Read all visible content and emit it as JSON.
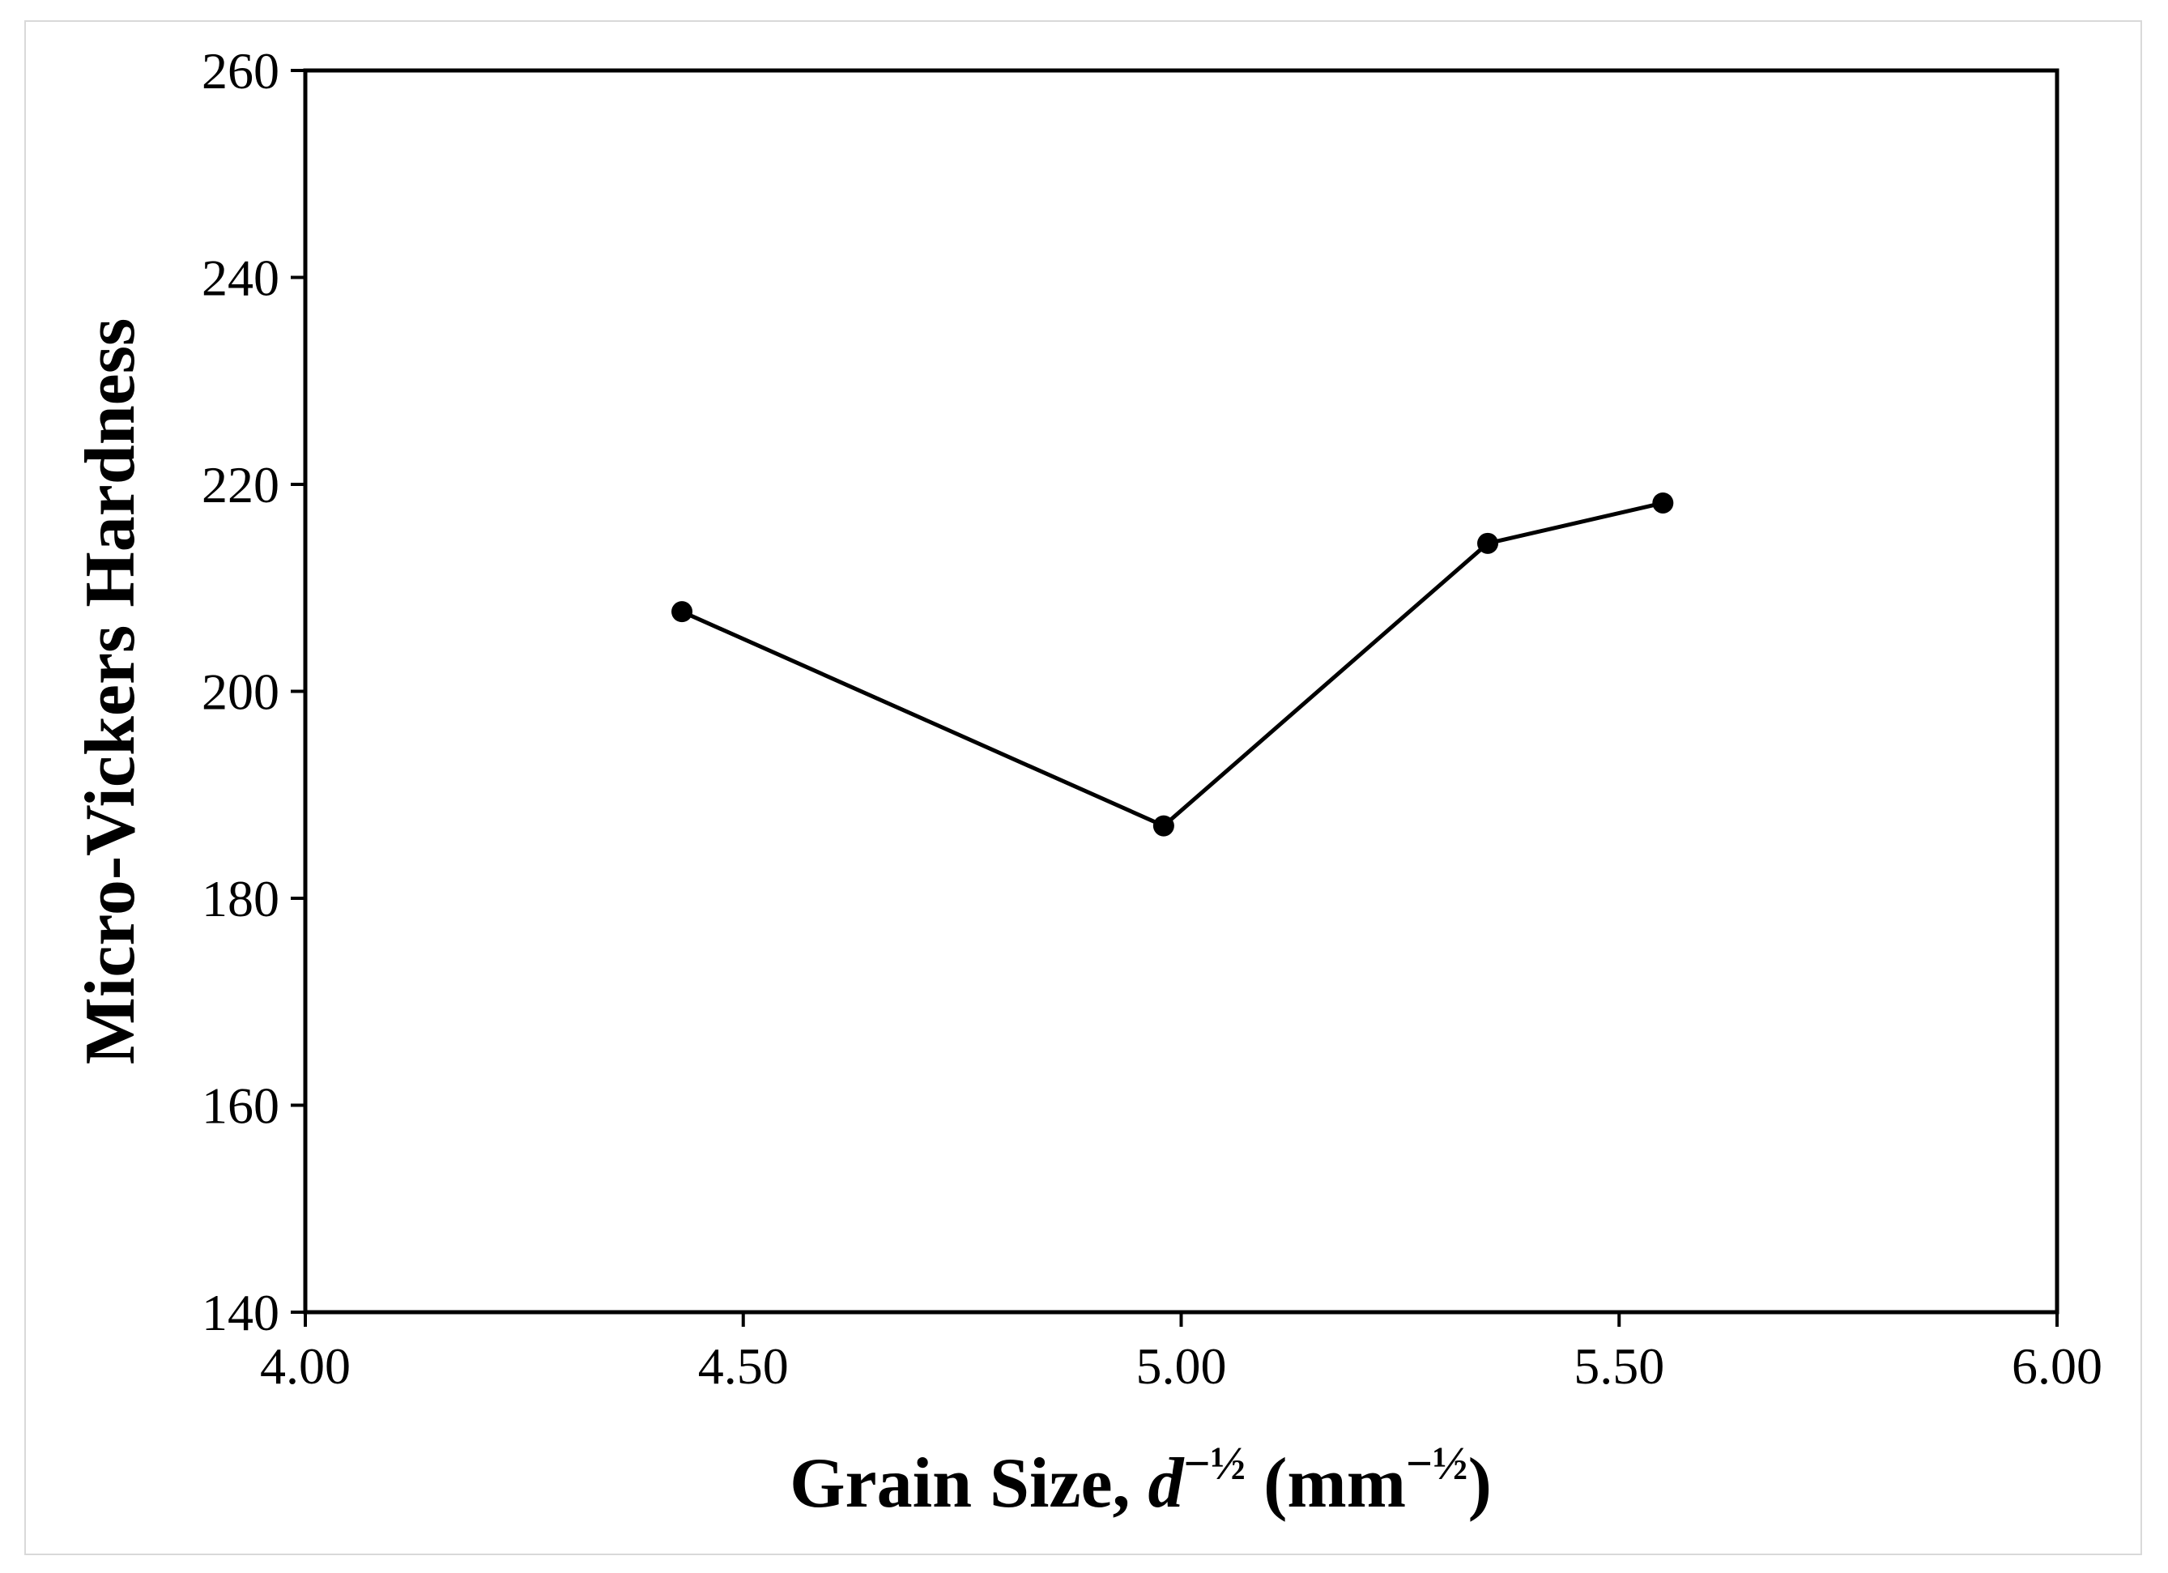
{
  "chart_data": {
    "type": "line",
    "title": "",
    "xlabel": {
      "prefix": "Grain Size, ",
      "var": "d",
      "exp": "−½",
      "unit_open": " (mm",
      "unit_exp": "−½",
      "unit_close": ")"
    },
    "ylabel": "Micro-Vickers Hardness",
    "xlim": [
      4.0,
      6.0
    ],
    "ylim": [
      140,
      260
    ],
    "x_ticks": [
      4.0,
      4.5,
      5.0,
      5.5,
      6.0
    ],
    "x_tick_labels": [
      "4.00",
      "4.50",
      "5.00",
      "5.50",
      "6.00"
    ],
    "y_ticks": [
      140,
      160,
      180,
      200,
      220,
      240,
      260
    ],
    "y_tick_labels": [
      "140",
      "160",
      "180",
      "200",
      "220",
      "240",
      "260"
    ],
    "grid": false,
    "legend": "none",
    "series": [
      {
        "color": "#000000",
        "marker": "circle",
        "points": [
          {
            "x": 4.43,
            "y": 207.7
          },
          {
            "x": 4.98,
            "y": 187.0
          },
          {
            "x": 5.35,
            "y": 214.3
          },
          {
            "x": 5.55,
            "y": 218.2
          }
        ]
      }
    ]
  }
}
